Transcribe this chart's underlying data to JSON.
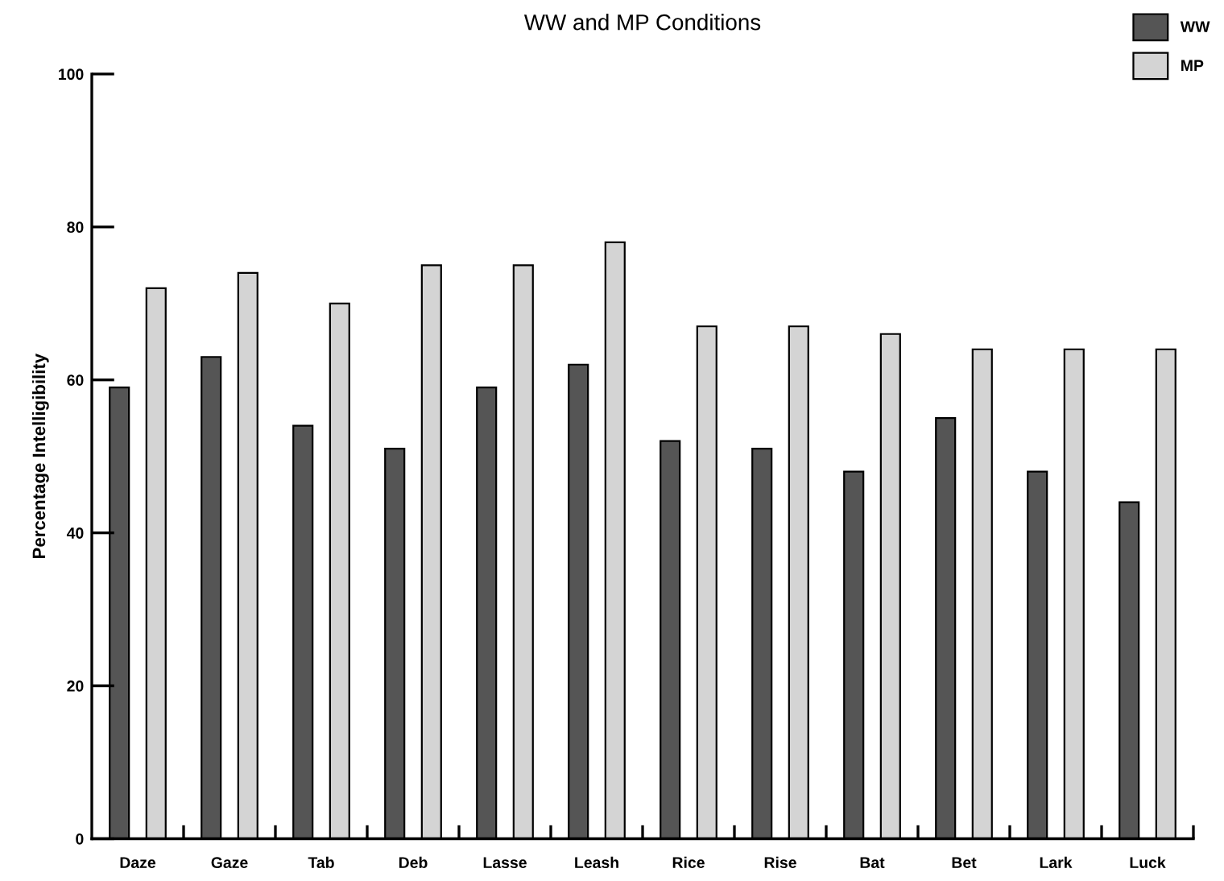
{
  "chart_data": {
    "type": "bar",
    "title": "WW and MP Conditions",
    "ylabel": "Percentage Intelligibility",
    "categories": [
      "Daze",
      "Gaze",
      "Tab",
      "Deb",
      "Lasse",
      "Leash",
      "Rice",
      "Rise",
      "Bat",
      "Bet",
      "Lark",
      "Luck"
    ],
    "series": [
      {
        "name": "WW",
        "color": "#555555",
        "values": [
          59,
          63,
          54,
          51,
          59,
          62,
          52,
          51,
          48,
          55,
          48,
          44
        ]
      },
      {
        "name": "MP",
        "color": "#d4d4d4",
        "values": [
          72,
          74,
          70,
          75,
          75,
          78,
          67,
          67,
          66,
          64,
          64,
          64
        ]
      }
    ],
    "ylim": [
      0,
      100
    ],
    "yticks": [
      0,
      20,
      40,
      60,
      80,
      100
    ],
    "grid": false,
    "legend": "top right"
  }
}
